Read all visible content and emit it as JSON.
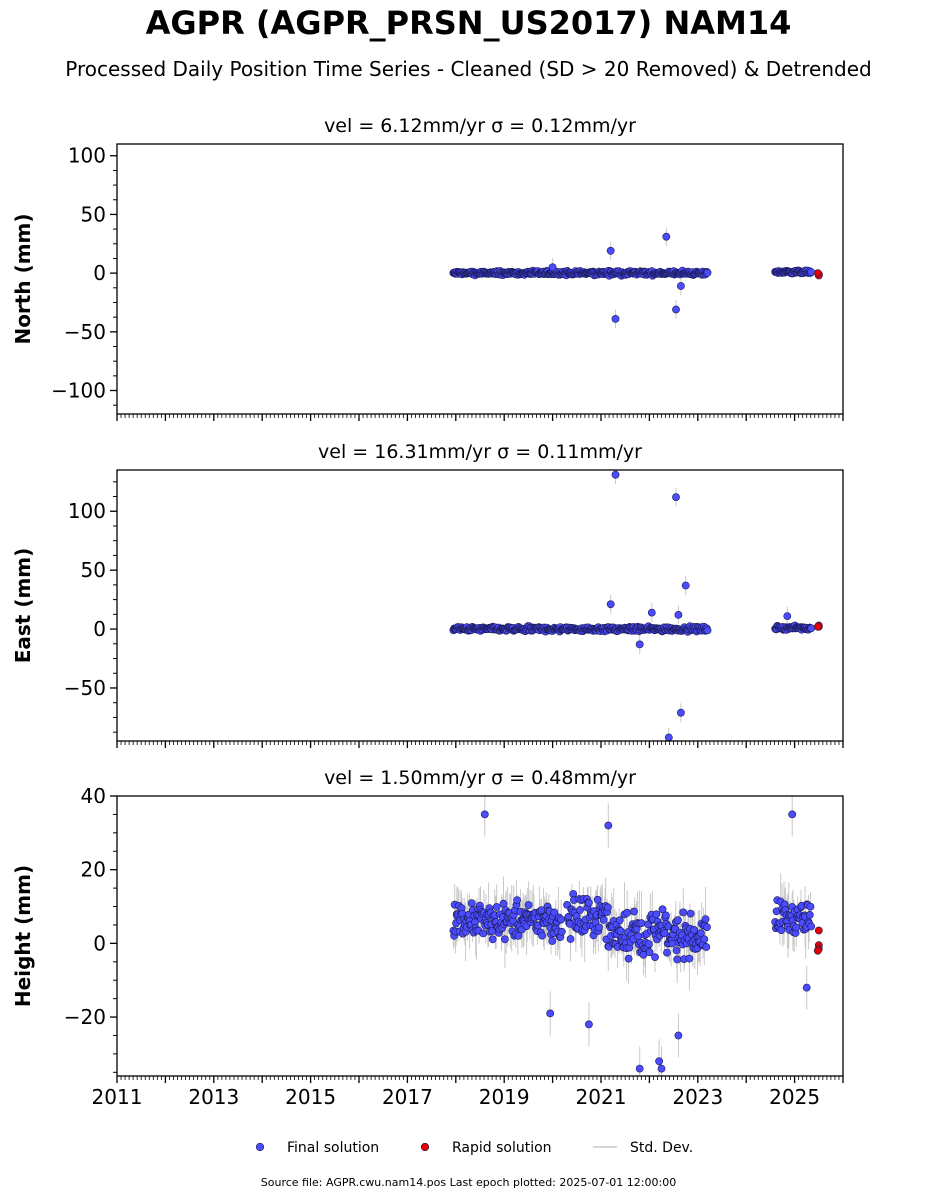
{
  "header": {
    "title": "AGPR (AGPR_PRSN_US2017) NAM14",
    "subtitle": "Processed Daily Position Time Series - Cleaned (SD > 20 Removed) & Detrended"
  },
  "footer": {
    "source": "Source file: AGPR.cwu.nam14.pos  Last epoch plotted: 2025-07-01 12:00:00"
  },
  "legend": {
    "placement": "bottom-center",
    "items": [
      {
        "label": "Final solution",
        "color": "#4b4bff",
        "marker": "circle"
      },
      {
        "label": "Rapid solution",
        "color": "#e60000",
        "marker": "circle"
      },
      {
        "label": "Std. Dev.",
        "color": "#c8c8c8",
        "marker": "line"
      }
    ]
  },
  "chart_data": [
    {
      "type": "scatter",
      "title": "vel = 6.12mm/yr   σ = 0.12mm/yr",
      "ylabel": "North (mm)",
      "xlim": [
        2011,
        2026
      ],
      "ylim": [
        -120,
        110
      ],
      "yticks": [
        -100,
        -50,
        0,
        50,
        100
      ],
      "yticklabels": [
        "−100",
        "−50",
        "0",
        "50",
        "100"
      ],
      "segments": [
        {
          "start": 2017.95,
          "end": 2023.2,
          "center": 0,
          "scatter": 2.2
        },
        {
          "start": 2024.6,
          "end": 2025.35,
          "center": 1,
          "scatter": 1.6
        }
      ],
      "outliers": [
        {
          "x": 2021.2,
          "y": 19
        },
        {
          "x": 2021.3,
          "y": -39
        },
        {
          "x": 2022.35,
          "y": 31
        },
        {
          "x": 2022.55,
          "y": -31
        },
        {
          "x": 2022.65,
          "y": -11
        },
        {
          "x": 2020.0,
          "y": 5
        }
      ],
      "rapid": [
        {
          "x": 2025.5,
          "y": -1
        },
        {
          "x": 2025.5,
          "y": -2
        },
        {
          "x": 2025.48,
          "y": 0
        }
      ]
    },
    {
      "type": "scatter",
      "title": "vel = 16.31mm/yr   σ = 0.11mm/yr",
      "ylabel": "East (mm)",
      "xlim": [
        2011,
        2026
      ],
      "ylim": [
        -95,
        135
      ],
      "yticks": [
        -50,
        0,
        50,
        100
      ],
      "yticklabels": [
        "−50",
        "0",
        "50",
        "100"
      ],
      "segments": [
        {
          "start": 2017.95,
          "end": 2023.2,
          "center": 0,
          "scatter": 2.5
        },
        {
          "start": 2024.6,
          "end": 2025.35,
          "center": 1,
          "scatter": 2
        }
      ],
      "outliers": [
        {
          "x": 2021.3,
          "y": 131
        },
        {
          "x": 2022.55,
          "y": 112
        },
        {
          "x": 2022.75,
          "y": 37
        },
        {
          "x": 2021.2,
          "y": 21
        },
        {
          "x": 2022.65,
          "y": -71
        },
        {
          "x": 2022.4,
          "y": -92
        },
        {
          "x": 2022.05,
          "y": 14
        },
        {
          "x": 2022.6,
          "y": 12
        },
        {
          "x": 2024.85,
          "y": 11
        },
        {
          "x": 2021.8,
          "y": -13
        }
      ],
      "rapid": [
        {
          "x": 2025.5,
          "y": 2
        },
        {
          "x": 2025.5,
          "y": 3
        },
        {
          "x": 2025.48,
          "y": 2
        }
      ]
    },
    {
      "type": "scatter",
      "title": "vel = 1.50mm/yr   σ = 0.48mm/yr",
      "ylabel": "Height (mm)",
      "xlim": [
        2011,
        2026
      ],
      "ylim": [
        -36,
        40
      ],
      "yticks": [
        -20,
        0,
        20,
        40
      ],
      "yticklabels": [
        "−20",
        "0",
        "20",
        "40"
      ],
      "segments": [
        {
          "start": 2017.95,
          "end": 2020.2,
          "center": 6,
          "scatter": 6
        },
        {
          "start": 2020.3,
          "end": 2021.15,
          "center": 7,
          "scatter": 7
        },
        {
          "start": 2021.15,
          "end": 2022.35,
          "center": 3,
          "scatter": 8
        },
        {
          "start": 2022.35,
          "end": 2023.2,
          "center": 2,
          "scatter": 7
        },
        {
          "start": 2024.6,
          "end": 2025.35,
          "center": 7,
          "scatter": 6
        }
      ],
      "outliers": [
        {
          "x": 2018.6,
          "y": 35
        },
        {
          "x": 2021.15,
          "y": 32
        },
        {
          "x": 2021.8,
          "y": -34
        },
        {
          "x": 2022.2,
          "y": -32
        },
        {
          "x": 2022.25,
          "y": -34
        },
        {
          "x": 2024.95,
          "y": 35
        },
        {
          "x": 2020.75,
          "y": -22
        },
        {
          "x": 2019.95,
          "y": -19
        },
        {
          "x": 2022.6,
          "y": -25
        },
        {
          "x": 2025.25,
          "y": -12
        }
      ],
      "rapid": [
        {
          "x": 2025.5,
          "y": 3.5
        },
        {
          "x": 2025.5,
          "y": -0.5
        },
        {
          "x": 2025.5,
          "y": -1.5
        },
        {
          "x": 2025.48,
          "y": -2
        }
      ]
    }
  ],
  "xaxis": {
    "ticks": [
      2011,
      2013,
      2015,
      2017,
      2019,
      2021,
      2023,
      2025
    ],
    "ticklabels": [
      "2011",
      "2013",
      "2015",
      "2017",
      "2019",
      "2021",
      "2023",
      "2025"
    ]
  }
}
